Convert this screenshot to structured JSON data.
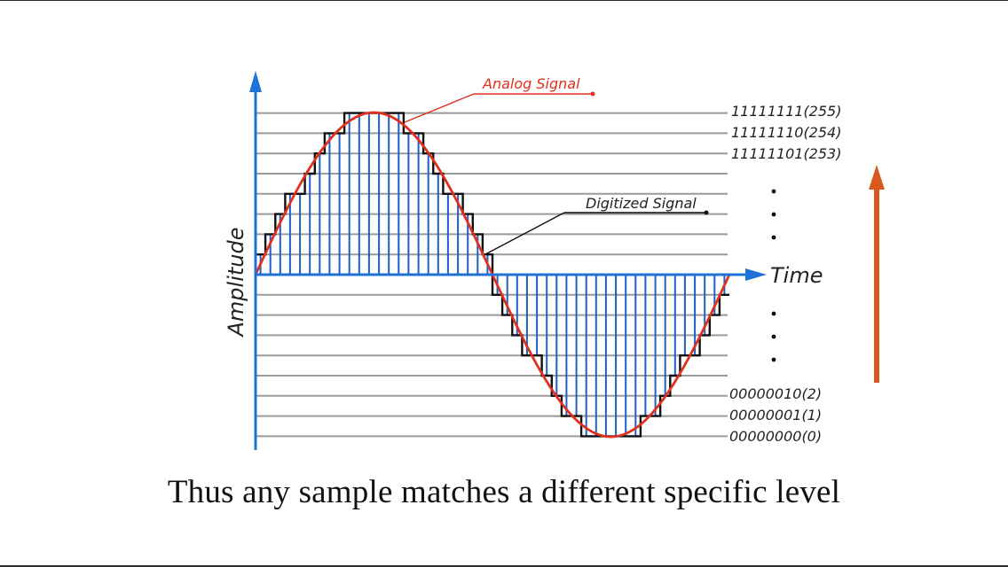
{
  "diagram": {
    "axis_labels": {
      "y": "Amplitude",
      "x": "Time"
    },
    "callouts": {
      "analog": "Analog Signal",
      "digital": "Digitized Signal"
    },
    "levels_top": [
      "11111111(255)",
      "11111110(254)",
      "11111101(253)"
    ],
    "levels_bottom": [
      "00000010(2)",
      "00000001(1)",
      "00000000(0)"
    ],
    "colors": {
      "analog": "#e0301e",
      "digital": "#111111",
      "samples": "#1f5fc8",
      "grid": "#9a9a9a",
      "axis": "#1f72d6",
      "arrow": "#d9581e"
    }
  },
  "caption": "Thus any sample matches a different specific level"
}
